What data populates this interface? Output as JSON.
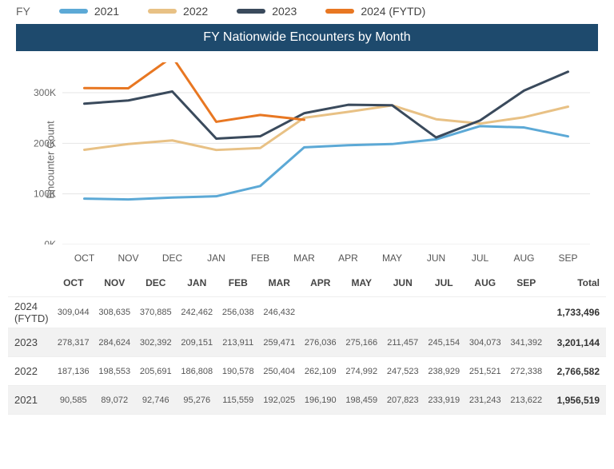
{
  "legend": {
    "prefix": "FY",
    "items": [
      {
        "label": "2021",
        "color": "#5ca9d6"
      },
      {
        "label": "2022",
        "color": "#e8c185"
      },
      {
        "label": "2023",
        "color": "#3a4a5c"
      },
      {
        "label": "2024 (FYTD)",
        "color": "#e87722"
      }
    ]
  },
  "title": "FY Nationwide Encounters by Month",
  "chart": {
    "type": "line",
    "ylabel": "Encounter Count",
    "ylim": [
      0,
      360000
    ],
    "yticks": [
      0,
      100000,
      200000,
      300000
    ],
    "ytick_labels": [
      "0K",
      "100K",
      "200K",
      "300K"
    ],
    "grid_color": "#e5e5e5",
    "background_color": "#ffffff",
    "line_width": 3,
    "months": [
      "OCT",
      "NOV",
      "DEC",
      "JAN",
      "FEB",
      "MAR",
      "APR",
      "MAY",
      "JUN",
      "JUL",
      "AUG",
      "SEP"
    ],
    "series": [
      {
        "name": "2021",
        "color": "#5ca9d6",
        "values": [
          90585,
          89072,
          92746,
          95276,
          115559,
          192025,
          196190,
          198459,
          207823,
          233919,
          231243,
          213622
        ]
      },
      {
        "name": "2022",
        "color": "#e8c185",
        "values": [
          187136,
          198553,
          205691,
          186808,
          190578,
          250404,
          262109,
          274992,
          247523,
          238929,
          251521,
          272338
        ]
      },
      {
        "name": "2023",
        "color": "#3a4a5c",
        "values": [
          278317,
          284624,
          302392,
          209151,
          213911,
          259471,
          276036,
          275166,
          211457,
          245154,
          304073,
          341392
        ]
      },
      {
        "name": "2024 (FYTD)",
        "color": "#e87722",
        "values": [
          309044,
          308635,
          370885,
          242462,
          256038,
          246432
        ]
      }
    ]
  },
  "table": {
    "header_months": [
      "OCT",
      "NOV",
      "DEC",
      "JAN",
      "FEB",
      "MAR",
      "APR",
      "MAY",
      "JUN",
      "JUL",
      "AUG",
      "SEP"
    ],
    "total_label": "Total",
    "rows": [
      {
        "label": "2024 (FYTD)",
        "shade": false,
        "cells": [
          "309,044",
          "308,635",
          "370,885",
          "242,462",
          "256,038",
          "246,432",
          "",
          "",
          "",
          "",
          "",
          ""
        ],
        "total": "1,733,496"
      },
      {
        "label": "2023",
        "shade": true,
        "cells": [
          "278,317",
          "284,624",
          "302,392",
          "209,151",
          "213,911",
          "259,471",
          "276,036",
          "275,166",
          "211,457",
          "245,154",
          "304,073",
          "341,392"
        ],
        "total": "3,201,144"
      },
      {
        "label": "2022",
        "shade": false,
        "cells": [
          "187,136",
          "198,553",
          "205,691",
          "186,808",
          "190,578",
          "250,404",
          "262,109",
          "274,992",
          "247,523",
          "238,929",
          "251,521",
          "272,338"
        ],
        "total": "2,766,582"
      },
      {
        "label": "2021",
        "shade": true,
        "cells": [
          "90,585",
          "89,072",
          "92,746",
          "95,276",
          "115,559",
          "192,025",
          "196,190",
          "198,459",
          "207,823",
          "233,919",
          "231,243",
          "213,622"
        ],
        "total": "1,956,519"
      }
    ]
  }
}
